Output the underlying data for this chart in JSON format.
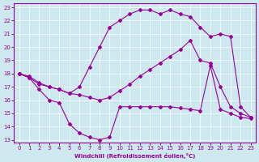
{
  "xlabel": "Windchill (Refroidissement éolien,°C)",
  "bg_color": "#cde8ef",
  "line_color": "#990099",
  "xlim": [
    -0.5,
    23.5
  ],
  "ylim": [
    12.8,
    23.3
  ],
  "xticks": [
    0,
    1,
    2,
    3,
    4,
    5,
    6,
    7,
    8,
    9,
    10,
    11,
    12,
    13,
    14,
    15,
    16,
    17,
    18,
    19,
    20,
    21,
    22,
    23
  ],
  "yticks": [
    13,
    14,
    15,
    16,
    17,
    18,
    19,
    20,
    21,
    22,
    23
  ],
  "line1_x": [
    0,
    1,
    2,
    3,
    4,
    5,
    6,
    7,
    8,
    9,
    10,
    11,
    12,
    13,
    14,
    15,
    16,
    17,
    18,
    19,
    20,
    21,
    22,
    23
  ],
  "line1_y": [
    18.0,
    17.7,
    16.8,
    16.0,
    15.8,
    14.2,
    13.5,
    13.2,
    13.0,
    13.2,
    15.5,
    15.5,
    15.5,
    15.5,
    15.5,
    15.5,
    15.4,
    15.3,
    15.2,
    18.6,
    15.3,
    15.0,
    14.7,
    14.6
  ],
  "line2_x": [
    0,
    1,
    2,
    3,
    4,
    5,
    6,
    7,
    8,
    9,
    10,
    11,
    12,
    13,
    14,
    15,
    16,
    17,
    18,
    19,
    20,
    21,
    22,
    23
  ],
  "line2_y": [
    18.0,
    17.8,
    17.3,
    17.0,
    16.8,
    16.5,
    16.4,
    16.2,
    16.0,
    16.2,
    16.7,
    17.2,
    17.8,
    18.3,
    18.8,
    19.3,
    19.8,
    20.5,
    19.0,
    18.8,
    17.0,
    15.5,
    15.0,
    14.7
  ],
  "line3_x": [
    0,
    1,
    2,
    3,
    4,
    5,
    6,
    7,
    8,
    9,
    10,
    11,
    12,
    13,
    14,
    15,
    16,
    17,
    18,
    19,
    20,
    21,
    22,
    23
  ],
  "line3_y": [
    18.0,
    17.7,
    17.2,
    17.0,
    16.8,
    16.5,
    17.0,
    18.5,
    20.0,
    21.5,
    22.0,
    22.5,
    22.8,
    22.8,
    22.5,
    22.8,
    22.5,
    22.3,
    21.5,
    20.8,
    21.0,
    20.8,
    15.5,
    14.7
  ]
}
